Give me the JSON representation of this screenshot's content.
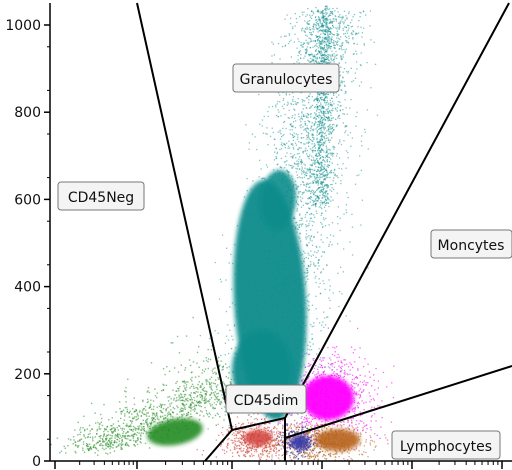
{
  "chart_data": {
    "type": "scatter",
    "title": "",
    "xlabel": "",
    "ylabel": "",
    "y_axis": {
      "range": [
        0,
        1000
      ],
      "ticks": [
        0,
        200,
        400,
        600,
        800,
        1000
      ]
    },
    "x_axis": {
      "scale": "log",
      "tick_labels": []
    },
    "gates": [
      {
        "name": "CD45Neg",
        "color": "#228b22"
      },
      {
        "name": "Granulocytes",
        "color": "#0b8c8c"
      },
      {
        "name": "Moncytes",
        "color": "#ff00ff"
      },
      {
        "name": "CD45dim",
        "color": "#d2413a"
      },
      {
        "name": "Lymphocytes",
        "color": "#b8641e"
      }
    ],
    "populations": [
      {
        "gate": "CD45Neg",
        "color": "#228b22",
        "center_y": 60,
        "count_estimate": "low"
      },
      {
        "gate": "Granulocytes",
        "color": "#0b8c8c",
        "center_y": 330,
        "count_estimate": "high"
      },
      {
        "gate": "Moncytes",
        "color": "#ff00ff",
        "center_y": 140,
        "count_estimate": "medium"
      },
      {
        "gate": "CD45dim",
        "color": "#d2413a",
        "center_y": 30,
        "count_estimate": "low"
      },
      {
        "gate": "Lymphocytes",
        "color": "#b8641e",
        "center_y": 40,
        "count_estimate": "medium"
      },
      {
        "gate": "Lymphocytes",
        "color": "#3a3aa8",
        "center_y": 25,
        "count_estimate": "low"
      }
    ]
  }
}
